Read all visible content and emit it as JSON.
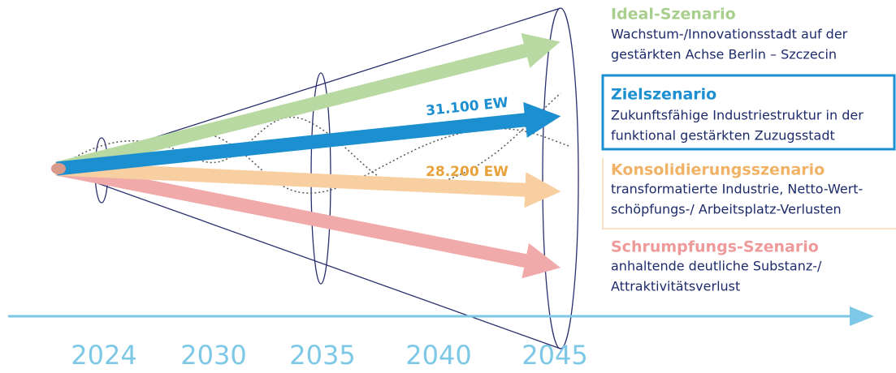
{
  "scenarios": [
    {
      "title": "Ideal-Szenario",
      "lines": [
        "Wachstum-/Innovationsstadt auf der",
        "gestärkten Achse Berlin – Szczecin"
      ]
    },
    {
      "title": "Zielszenario",
      "lines": [
        "Zukunftsfähige Industriestruktur in der",
        "funktional gestärkten Zuzugsstadt"
      ]
    },
    {
      "title": "Konsolidierungsszenario",
      "lines": [
        "transformatierte Industrie, Netto-Wert-",
        "schöpfungs-/ Arbeitsplatz-Verlusten"
      ]
    },
    {
      "title": "Schrumpfungs-Szenario",
      "lines": [
        "anhaltende deutliche Substanz-/",
        "Attraktivitätsverlust"
      ]
    }
  ],
  "arrow_labels": [
    "31.100 EW",
    "28.200 EW"
  ],
  "timeline": [
    "2024",
    "2030",
    "2035",
    "2040",
    "2045"
  ]
}
